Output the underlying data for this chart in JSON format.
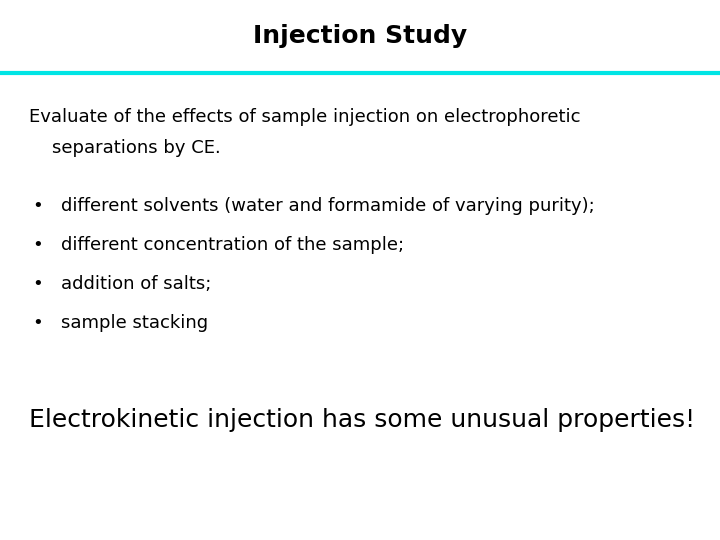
{
  "title": "Injection Study",
  "title_fontsize": 18,
  "title_fontweight": "bold",
  "title_color": "#000000",
  "line_color": "#00E5E5",
  "background_color": "#ffffff",
  "intro_text_line1": "Evaluate of the effects of sample injection on electrophoretic",
  "intro_text_line2": "    separations by CE.",
  "intro_fontsize": 13,
  "bullet_items": [
    "different solvents (water and formamide of varying purity);",
    "different concentration of the sample;",
    "addition of salts;",
    "sample stacking"
  ],
  "bullet_fontsize": 13,
  "footer_text": "Electrokinetic injection has some unusual properties!",
  "footer_fontsize": 18,
  "footer_color": "#000000",
  "text_color": "#000000"
}
